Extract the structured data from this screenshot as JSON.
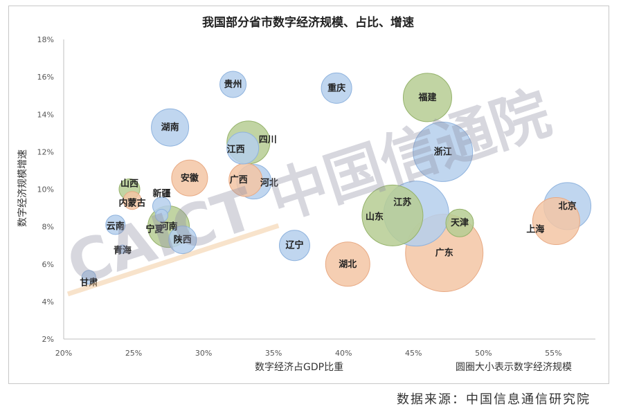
{
  "chart_data": {
    "type": "scatter",
    "title": "我国部分省市数字经济规模、占比、增速",
    "xlabel": "数字经济占GDP比重",
    "ylabel": "数字经济规模增速",
    "size_note": "圆圈大小表示数字经济规模",
    "xlim": [
      20,
      58
    ],
    "ylim": [
      2,
      18
    ],
    "x_ticks": [
      "20%",
      "25%",
      "30%",
      "35%",
      "40%",
      "45%",
      "50%",
      "55%"
    ],
    "y_ticks": [
      "2%",
      "4%",
      "6%",
      "8%",
      "10%",
      "12%",
      "14%",
      "16%",
      "18%"
    ],
    "grid": false,
    "legend": "none",
    "colors": {
      "blue": "#b5cfec",
      "green": "#b6cd93",
      "orange": "#f3c5a4"
    },
    "points": [
      {
        "name": "北京",
        "x": 56.0,
        "y": 9.1,
        "r": 34,
        "color": "blue"
      },
      {
        "name": "上海",
        "x": 55.2,
        "y": 8.3,
        "r": 34,
        "color": "orange"
      },
      {
        "name": "广东",
        "x": 47.2,
        "y": 6.6,
        "r": 56,
        "color": "orange"
      },
      {
        "name": "江苏",
        "x": 45.2,
        "y": 8.7,
        "r": 47,
        "color": "blue"
      },
      {
        "name": "山东",
        "x": 43.5,
        "y": 8.6,
        "r": 44,
        "color": "green"
      },
      {
        "name": "浙江",
        "x": 47.1,
        "y": 12.0,
        "r": 43,
        "color": "blue"
      },
      {
        "name": "福建",
        "x": 46.0,
        "y": 14.9,
        "r": 35,
        "color": "green"
      },
      {
        "name": "天津",
        "x": 48.3,
        "y": 8.2,
        "r": 20,
        "color": "green"
      },
      {
        "name": "重庆",
        "x": 39.5,
        "y": 15.4,
        "r": 22,
        "color": "blue"
      },
      {
        "name": "湖北",
        "x": 40.3,
        "y": 6.0,
        "r": 32,
        "color": "orange"
      },
      {
        "name": "辽宁",
        "x": 36.5,
        "y": 7.0,
        "r": 22,
        "color": "blue"
      },
      {
        "name": "四川",
        "x": 33.2,
        "y": 12.5,
        "r": 31,
        "color": "green"
      },
      {
        "name": "江西",
        "x": 32.8,
        "y": 12.2,
        "r": 23,
        "color": "blue"
      },
      {
        "name": "河北",
        "x": 33.6,
        "y": 10.4,
        "r": 25,
        "color": "blue"
      },
      {
        "name": "广西",
        "x": 33.0,
        "y": 10.5,
        "r": 24,
        "color": "orange"
      },
      {
        "name": "贵州",
        "x": 32.1,
        "y": 15.6,
        "r": 19,
        "color": "blue"
      },
      {
        "name": "湖南",
        "x": 27.6,
        "y": 13.3,
        "r": 27,
        "color": "blue"
      },
      {
        "name": "安徽",
        "x": 29.0,
        "y": 10.6,
        "r": 26,
        "color": "orange"
      },
      {
        "name": "河南",
        "x": 27.5,
        "y": 8.0,
        "r": 30,
        "color": "green"
      },
      {
        "name": "陕西",
        "x": 28.5,
        "y": 7.3,
        "r": 20,
        "color": "blue"
      },
      {
        "name": "新疆",
        "x": 27.0,
        "y": 9.1,
        "r": 13,
        "color": "blue"
      },
      {
        "name": "宁夏",
        "x": 27.0,
        "y": 8.6,
        "r": 9,
        "color": "blue"
      },
      {
        "name": "山西",
        "x": 24.7,
        "y": 10.0,
        "r": 15,
        "color": "green"
      },
      {
        "name": "内蒙古",
        "x": 24.9,
        "y": 9.4,
        "r": 13,
        "color": "orange"
      },
      {
        "name": "云南",
        "x": 23.7,
        "y": 8.1,
        "r": 14,
        "color": "blue"
      },
      {
        "name": "青海",
        "x": 24.2,
        "y": 6.8,
        "r": 6,
        "color": "blue"
      },
      {
        "name": "甘肃",
        "x": 21.8,
        "y": 5.3,
        "r": 10,
        "color": "blue"
      }
    ]
  },
  "watermark": "CAICT 中国信通院",
  "source": "数据来源：中国信息通信研究院"
}
